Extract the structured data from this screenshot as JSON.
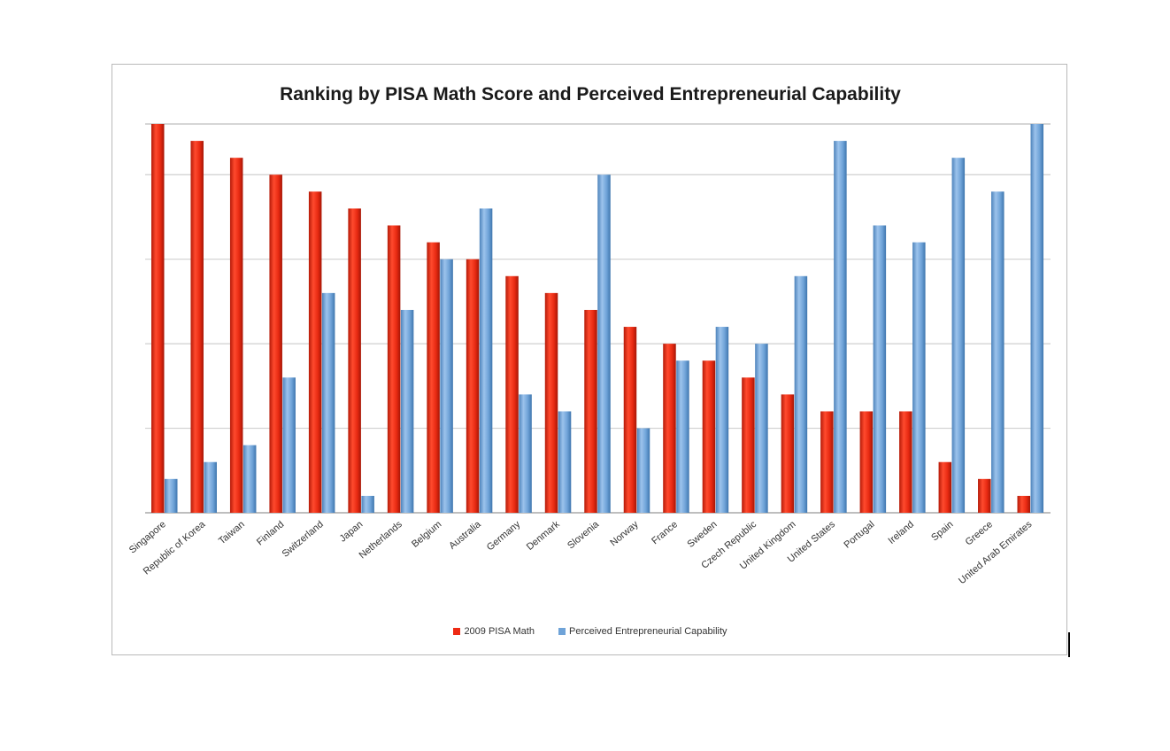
{
  "chart_data": {
    "type": "bar",
    "title": "Ranking by PISA Math Score and Perceived Entrepreneurial Capability",
    "xlabel": "",
    "ylabel": "",
    "ylim": [
      0,
      23
    ],
    "grid": true,
    "legend_position": "bottom",
    "categories": [
      "Singapore",
      "Republic of Korea",
      "Taiwan",
      "Finland",
      "Switzerland",
      "Japan",
      "Netherlands",
      "Belgium",
      "Australia",
      "Germany",
      "Denmark",
      "Slovenia",
      "Norway",
      "France",
      "Sweden",
      "Czech Republic",
      "United Kingdom",
      "United States",
      "Portugal",
      "Ireland",
      "Spain",
      "Greece",
      "United Arab Emirates"
    ],
    "series": [
      {
        "name": "2009 PISA Math",
        "color": "#ee2a14",
        "values": [
          23,
          22,
          21,
          20,
          19,
          18,
          17,
          16,
          15,
          14,
          13,
          12,
          11,
          10,
          9,
          8,
          7,
          6,
          6,
          6,
          3,
          2,
          1
        ]
      },
      {
        "name": "Perceived Entrepreneurial Capability",
        "color": "#6fa3d8",
        "values": [
          2,
          3,
          4,
          8,
          13,
          1,
          12,
          15,
          18,
          7,
          6,
          20,
          5,
          9,
          11,
          10,
          14,
          22,
          17,
          16,
          21,
          19,
          23
        ]
      }
    ]
  }
}
